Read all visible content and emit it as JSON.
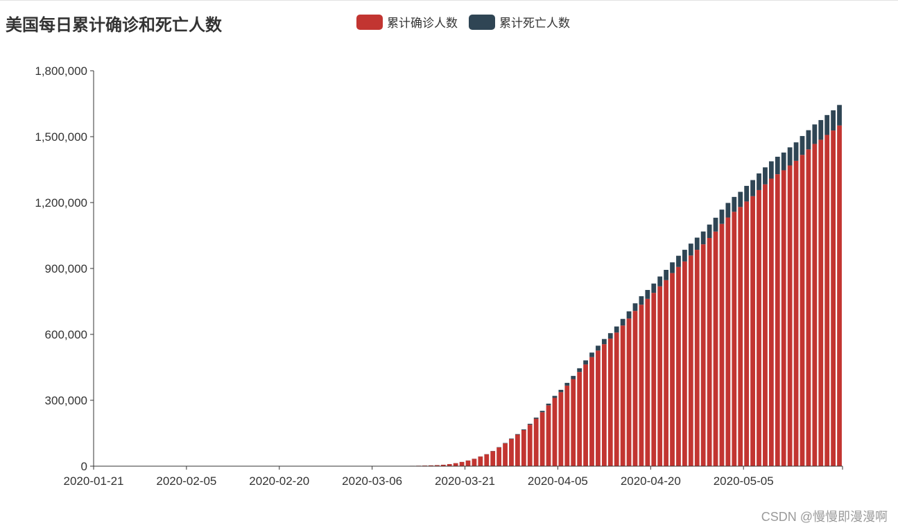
{
  "title": "美国每日累计确诊和死亡人数",
  "watermark": "CSDN @慢慢即漫漫啊",
  "colors": {
    "confirmed": "#c23531",
    "deaths": "#2f4554",
    "axis": "#333333",
    "text": "#333333"
  },
  "chart_data": {
    "type": "bar",
    "stacked": true,
    "title": "美国每日累计确诊和死亡人数",
    "legend": {
      "placement": "top-center"
    },
    "grid": false,
    "x_axis": {
      "type": "date",
      "start": "2020-01-21",
      "end": "2020-05-20",
      "tick_labels": [
        "2020-01-21",
        "2020-02-05",
        "2020-02-20",
        "2020-03-06",
        "2020-03-21",
        "2020-04-05",
        "2020-04-20",
        "2020-05-05"
      ]
    },
    "y_axis": {
      "range": [
        0,
        1800000
      ],
      "tick_labels": [
        "0",
        "300,000",
        "600,000",
        "900,000",
        "1,200,000",
        "1,500,000",
        "1,800,000"
      ]
    },
    "categories": [
      "2020-03-10",
      "2020-03-11",
      "2020-03-12",
      "2020-03-13",
      "2020-03-14",
      "2020-03-15",
      "2020-03-16",
      "2020-03-17",
      "2020-03-18",
      "2020-03-19",
      "2020-03-20",
      "2020-03-21",
      "2020-03-22",
      "2020-03-23",
      "2020-03-24",
      "2020-03-25",
      "2020-03-26",
      "2020-03-27",
      "2020-03-28",
      "2020-03-29",
      "2020-03-30",
      "2020-03-31",
      "2020-04-01",
      "2020-04-02",
      "2020-04-03",
      "2020-04-04",
      "2020-04-05",
      "2020-04-06",
      "2020-04-07",
      "2020-04-08",
      "2020-04-09",
      "2020-04-10",
      "2020-04-11",
      "2020-04-12",
      "2020-04-13",
      "2020-04-14",
      "2020-04-15",
      "2020-04-16",
      "2020-04-17",
      "2020-04-18",
      "2020-04-19",
      "2020-04-20",
      "2020-04-21",
      "2020-04-22",
      "2020-04-23",
      "2020-04-24",
      "2020-04-25",
      "2020-04-26",
      "2020-04-27",
      "2020-04-28",
      "2020-04-29",
      "2020-04-30",
      "2020-05-01",
      "2020-05-02",
      "2020-05-03",
      "2020-05-04",
      "2020-05-05",
      "2020-05-06",
      "2020-05-07",
      "2020-05-08",
      "2020-05-09",
      "2020-05-10",
      "2020-05-11",
      "2020-05-12",
      "2020-05-13",
      "2020-05-14",
      "2020-05-15",
      "2020-05-16",
      "2020-05-17",
      "2020-05-18",
      "2020-05-19",
      "2020-05-20"
    ],
    "series": [
      {
        "name": "累计确诊人数",
        "color": "#c23531",
        "values": [
          1000,
          1300,
          1700,
          2200,
          2900,
          3700,
          4700,
          6400,
          9400,
          13700,
          19100,
          25500,
          33300,
          43800,
          54000,
          68200,
          85200,
          103900,
          123800,
          143500,
          164300,
          189000,
          216000,
          245500,
          277000,
          311000,
          336800,
          366700,
          396200,
          429000,
          463000,
          496500,
          526400,
          555300,
          580600,
          608400,
          640300,
          672200,
          706800,
          735000,
          761600,
          788900,
          818700,
          846900,
          879000,
          906900,
          932000,
          958900,
          985000,
          1010000,
          1039000,
          1068000,
          1103000,
          1132000,
          1158000,
          1180000,
          1205000,
          1229000,
          1257000,
          1283000,
          1309000,
          1329000,
          1347000,
          1369000,
          1390000,
          1417000,
          1442000,
          1467000,
          1486000,
          1508000,
          1528000,
          1551000
        ]
      },
      {
        "name": "累计死亡人数",
        "color": "#2f4554",
        "values": [
          30,
          40,
          50,
          60,
          70,
          90,
          110,
          140,
          200,
          260,
          300,
          400,
          500,
          600,
          800,
          1000,
          1300,
          1700,
          2200,
          2600,
          3200,
          4000,
          5200,
          6500,
          7700,
          9100,
          10800,
          12600,
          14800,
          16800,
          18700,
          20600,
          22100,
          23600,
          25000,
          27500,
          30100,
          32700,
          34600,
          38700,
          40600,
          42500,
          44800,
          46800,
          48900,
          51000,
          53000,
          54300,
          55400,
          58300,
          60900,
          63000,
          65000,
          66400,
          67700,
          68900,
          71000,
          73400,
          75700,
          77300,
          78800,
          79600,
          80700,
          82400,
          84100,
          85900,
          87500,
          88700,
          89500,
          90400,
          91900,
          93300
        ]
      }
    ]
  }
}
